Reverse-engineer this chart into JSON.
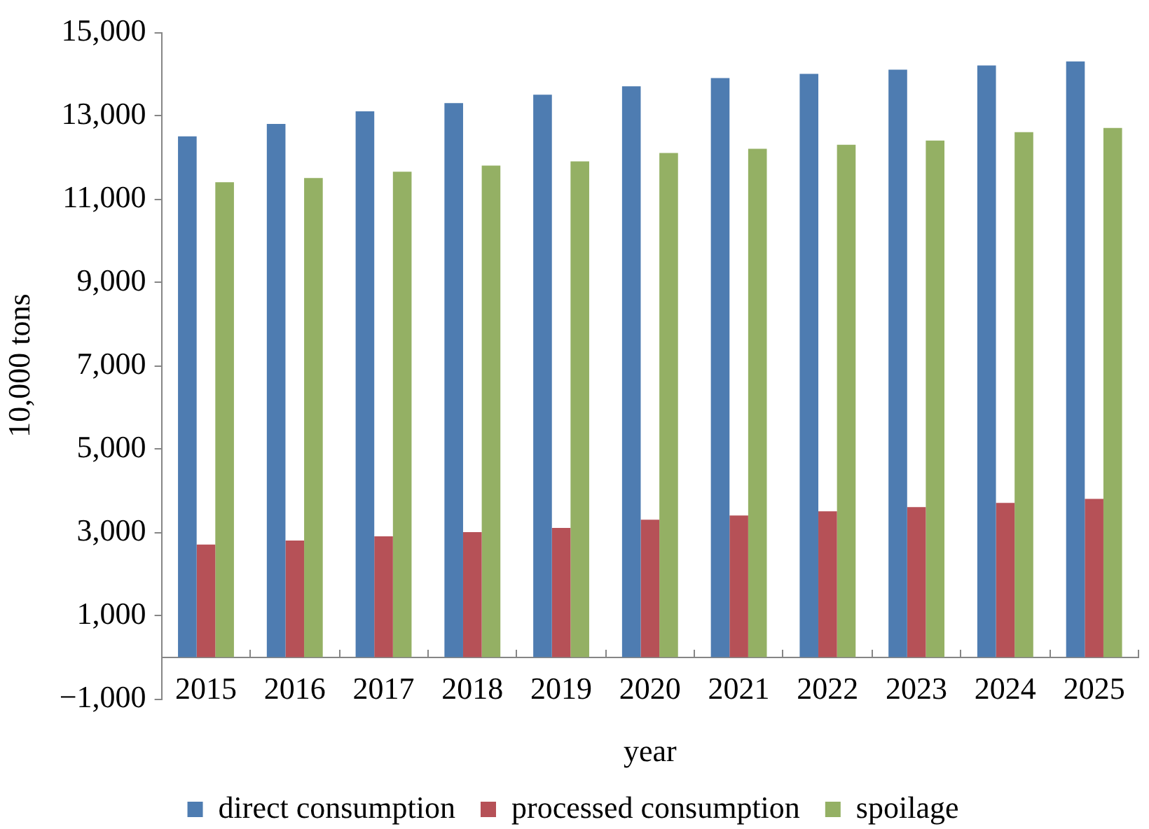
{
  "chart_data": {
    "type": "bar",
    "xlabel": "year",
    "ylabel": "10,000 tons",
    "categories": [
      "2015",
      "2016",
      "2017",
      "2018",
      "2019",
      "2020",
      "2021",
      "2022",
      "2023",
      "2024",
      "2025"
    ],
    "series": [
      {
        "name": "direct consumption",
        "color": "#4e7cb1",
        "values": [
          12500,
          12800,
          13100,
          13300,
          13500,
          13700,
          13900,
          14000,
          14100,
          14200,
          14300
        ]
      },
      {
        "name": "processed consumption",
        "color": "#b65157",
        "values": [
          2700,
          2800,
          2900,
          3000,
          3100,
          3300,
          3400,
          3500,
          3600,
          3700,
          3800
        ]
      },
      {
        "name": "spoilage",
        "color": "#94b064",
        "values": [
          11400,
          11500,
          11650,
          11800,
          11900,
          12100,
          12200,
          12300,
          12400,
          12600,
          12700
        ]
      }
    ],
    "ylim": [
      -1000,
      15000
    ],
    "yticks": [
      {
        "value": -1000,
        "label": "−1,000"
      },
      {
        "value": 1000,
        "label": "1,000"
      },
      {
        "value": 3000,
        "label": "3,000"
      },
      {
        "value": 5000,
        "label": "5,000"
      },
      {
        "value": 7000,
        "label": "7,000"
      },
      {
        "value": 9000,
        "label": "9,000"
      },
      {
        "value": 11000,
        "label": "11,000"
      },
      {
        "value": 13000,
        "label": "13,000"
      },
      {
        "value": 15000,
        "label": "15,000"
      }
    ],
    "grid": false,
    "legend": "bottom"
  }
}
